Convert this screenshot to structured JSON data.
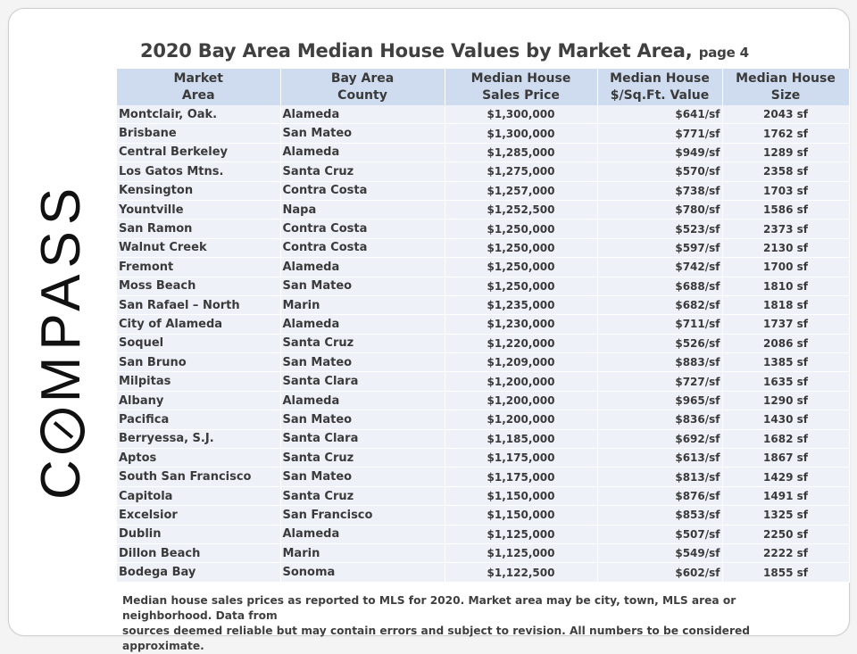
{
  "title": {
    "main": "2020 Bay Area Median House Values by Market Area,",
    "suffix": "page 4"
  },
  "logo_text": "COMPASS",
  "table": {
    "headers": [
      {
        "line1": "Market",
        "line2": "Area"
      },
      {
        "line1": "Bay Area",
        "line2": "County"
      },
      {
        "line1": "Median House",
        "line2": "Sales Price"
      },
      {
        "line1": "Median House",
        "line2": "$/Sq.Ft. Value"
      },
      {
        "line1": "Median House",
        "line2": "Size"
      }
    ],
    "rows": [
      {
        "area": "Montclair, Oak.",
        "county": "Alameda",
        "price": "$1,300,000",
        "psf": "$641/sf",
        "size": "2043  sf"
      },
      {
        "area": "Brisbane",
        "county": "San Mateo",
        "price": "$1,300,000",
        "psf": "$771/sf",
        "size": "1762  sf"
      },
      {
        "area": "Central Berkeley",
        "county": "Alameda",
        "price": "$1,285,000",
        "psf": "$949/sf",
        "size": "1289  sf"
      },
      {
        "area": "Los Gatos Mtns.",
        "county": "Santa Cruz",
        "price": "$1,275,000",
        "psf": "$570/sf",
        "size": "2358  sf"
      },
      {
        "area": "Kensington",
        "county": "Contra Costa",
        "price": "$1,257,000",
        "psf": "$738/sf",
        "size": "1703  sf"
      },
      {
        "area": "Yountville",
        "county": "Napa",
        "price": "$1,252,500",
        "psf": "$780/sf",
        "size": "1586  sf"
      },
      {
        "area": "San Ramon",
        "county": "Contra Costa",
        "price": "$1,250,000",
        "psf": "$523/sf",
        "size": "2373  sf"
      },
      {
        "area": "Walnut Creek",
        "county": "Contra Costa",
        "price": "$1,250,000",
        "psf": "$597/sf",
        "size": "2130  sf"
      },
      {
        "area": "Fremont",
        "county": "Alameda",
        "price": "$1,250,000",
        "psf": "$742/sf",
        "size": "1700  sf"
      },
      {
        "area": "Moss Beach",
        "county": "San Mateo",
        "price": "$1,250,000",
        "psf": "$688/sf",
        "size": "1810  sf"
      },
      {
        "area": "San Rafael – North",
        "county": "Marin",
        "price": "$1,235,000",
        "psf": "$682/sf",
        "size": "1818  sf"
      },
      {
        "area": "City of Alameda",
        "county": "Alameda",
        "price": "$1,230,000",
        "psf": "$711/sf",
        "size": "1737  sf"
      },
      {
        "area": "Soquel",
        "county": "Santa Cruz",
        "price": "$1,220,000",
        "psf": "$526/sf",
        "size": "2086  sf"
      },
      {
        "area": "San Bruno",
        "county": "San Mateo",
        "price": "$1,209,000",
        "psf": "$883/sf",
        "size": "1385  sf"
      },
      {
        "area": "Milpitas",
        "county": "Santa Clara",
        "price": "$1,200,000",
        "psf": "$727/sf",
        "size": "1635  sf"
      },
      {
        "area": "Albany",
        "county": "Alameda",
        "price": "$1,200,000",
        "psf": "$965/sf",
        "size": "1290  sf"
      },
      {
        "area": "Pacifica",
        "county": "San Mateo",
        "price": "$1,200,000",
        "psf": "$836/sf",
        "size": "1430  sf"
      },
      {
        "area": "Berryessa, S.J.",
        "county": "Santa Clara",
        "price": "$1,185,000",
        "psf": "$692/sf",
        "size": "1682  sf"
      },
      {
        "area": "Aptos",
        "county": "Santa Cruz",
        "price": "$1,175,000",
        "psf": "$613/sf",
        "size": "1867  sf"
      },
      {
        "area": "South San Francisco",
        "county": "San Mateo",
        "price": "$1,175,000",
        "psf": "$813/sf",
        "size": "1429  sf"
      },
      {
        "area": "Capitola",
        "county": "Santa Cruz",
        "price": "$1,150,000",
        "psf": "$876/sf",
        "size": "1491  sf"
      },
      {
        "area": "Excelsior",
        "county": "San Francisco",
        "price": "$1,150,000",
        "psf": "$853/sf",
        "size": "1325  sf"
      },
      {
        "area": "Dublin",
        "county": "Alameda",
        "price": "$1,125,000",
        "psf": "$507/sf",
        "size": "2250  sf"
      },
      {
        "area": "Dillon Beach",
        "county": "Marin",
        "price": "$1,125,000",
        "psf": "$549/sf",
        "size": "2222  sf"
      },
      {
        "area": "Bodega Bay",
        "county": "Sonoma",
        "price": "$1,122,500",
        "psf": "$602/sf",
        "size": "1855  sf"
      }
    ]
  },
  "footnote": {
    "line1": "Median house sales prices as reported to MLS for 2020.  Market area may be city, town, MLS area or neighborhood. Data from",
    "line2": "sources deemed reliable but may contain errors and subject to revision. All numbers to be considered approximate."
  },
  "colors": {
    "header_bg": "#cfdcef",
    "row_bg": "#eef2f8",
    "text": "#3a3a3a"
  }
}
